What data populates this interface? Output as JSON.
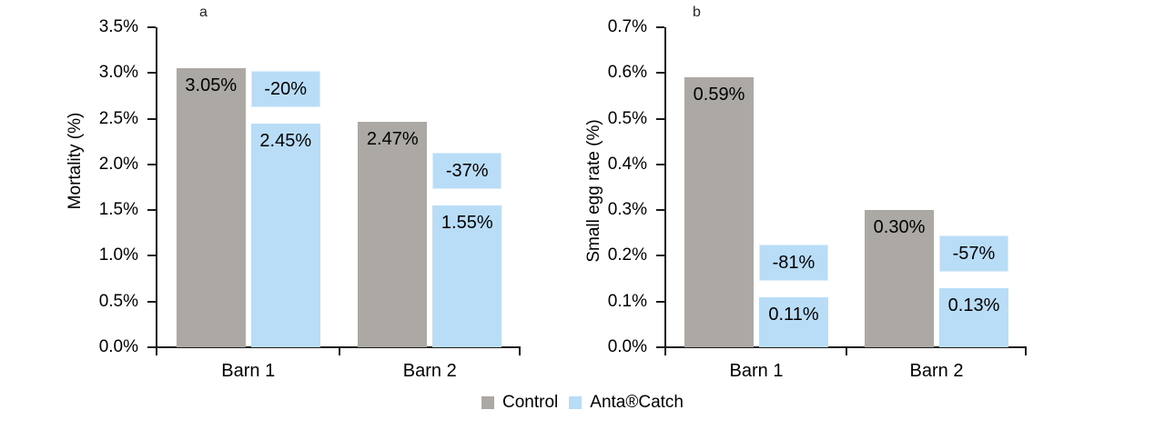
{
  "figure": {
    "background": "#ffffff"
  },
  "colors": {
    "control_bar": "#aca8a3",
    "anta_bar": "#b9dcf7",
    "text": "#000000",
    "axis": "#1a1a1a"
  },
  "legend": {
    "position": "bottom-center",
    "items": [
      {
        "label": "Control",
        "color": "#aca8a3"
      },
      {
        "label": "Anta®Catch",
        "color": "#b9dcf7"
      }
    ]
  },
  "chart_data": [
    {
      "type": "bar",
      "panel_label": "a",
      "title": "",
      "xlabel": "",
      "ylabel": "Mortality (%)",
      "ylim": [
        0,
        3.5
      ],
      "ytick_step": 0.5,
      "ytick_labels": [
        "0.0%",
        "0.5%",
        "1.0%",
        "1.5%",
        "2.0%",
        "2.5%",
        "3.0%",
        "3.5%"
      ],
      "grid": false,
      "categories": [
        "Barn 1",
        "Barn 2"
      ],
      "series": [
        {
          "name": "Control",
          "values": [
            3.05,
            2.47
          ],
          "labels": [
            "3.05%",
            "2.47%"
          ]
        },
        {
          "name": "Anta®Catch",
          "values": [
            2.45,
            1.55
          ],
          "labels": [
            "2.45%",
            "1.55%"
          ],
          "change_labels": [
            "-20%",
            "-37%"
          ]
        }
      ]
    },
    {
      "type": "bar",
      "panel_label": "b",
      "title": "",
      "xlabel": "",
      "ylabel": "Small egg rate (%)",
      "ylim": [
        0,
        0.7
      ],
      "ytick_step": 0.1,
      "ytick_labels": [
        "0.0%",
        "0.1%",
        "0.2%",
        "0.3%",
        "0.4%",
        "0.5%",
        "0.6%",
        "0.7%"
      ],
      "grid": false,
      "categories": [
        "Barn 1",
        "Barn 2"
      ],
      "series": [
        {
          "name": "Control",
          "values": [
            0.59,
            0.3
          ],
          "labels": [
            "0.59%",
            "0.30%"
          ]
        },
        {
          "name": "Anta®Catch",
          "values": [
            0.11,
            0.13
          ],
          "labels": [
            "0.11%",
            "0.13%"
          ],
          "change_labels": [
            "-81%",
            "-57%"
          ]
        }
      ]
    }
  ]
}
